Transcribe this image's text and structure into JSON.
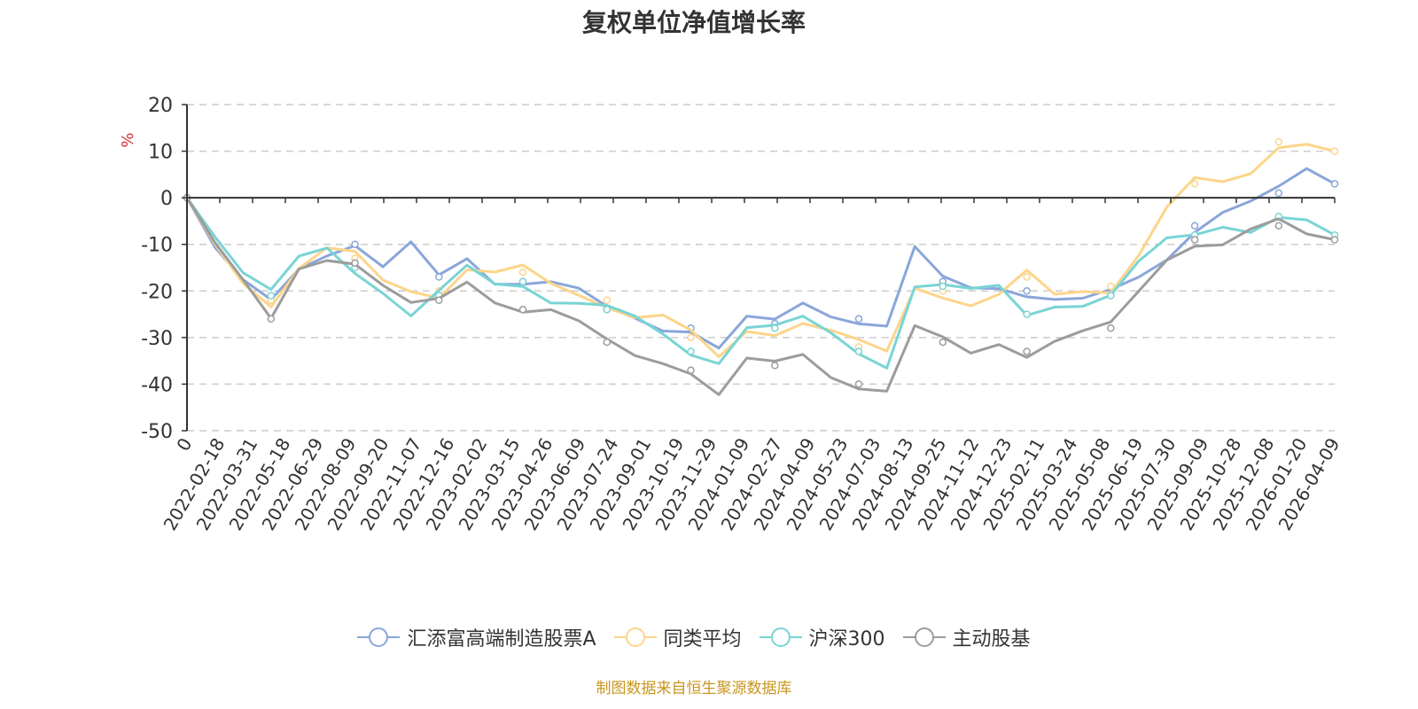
{
  "chart_data": {
    "type": "line",
    "title": "复权单位净值增长率",
    "ylabel": "%",
    "xlabel": "",
    "ylim": [
      -50,
      20
    ],
    "yticks": [
      20,
      10,
      0,
      -10,
      -20,
      -30,
      -40,
      -50
    ],
    "grid": true,
    "legend_position": "bottom-center",
    "x_ticks": [
      "0",
      "2022-02-18",
      "2022-03-31",
      "2022-05-18",
      "2022-06-29",
      "2022-08-09",
      "2022-09-20",
      "2022-11-07",
      "2022-12-16",
      "2023-02-02",
      "2023-03-15",
      "2023-04-26",
      "2023-06-09",
      "2023-07-24",
      "2023-09-01",
      "2023-10-19",
      "2023-11-29",
      "2024-01-09",
      "2024-02-27",
      "2024-04-09",
      "2024-05-23",
      "2024-07-03",
      "2024-08-13",
      "2024-09-25",
      "2024-11-12",
      "2024-12-23",
      "2025-02-11",
      "2025-03-24",
      "2025-05-08",
      "2025-06-19",
      "2025-07-30",
      "2025-09-09",
      "2025-10-28",
      "2025-12-08",
      "2026-01-20",
      "2026-04-09"
    ],
    "series": [
      {
        "name": "汇添富高端制造股票A",
        "color": "#8aa6da",
        "values": [
          0,
          -12,
          -19,
          -22,
          -14,
          -11,
          -10,
          -16,
          -11,
          -17,
          -12,
          -17,
          -18,
          -19,
          -21,
          -24,
          -25,
          -27,
          -28,
          -33,
          -27,
          -27,
          -22,
          -24,
          -26,
          -28,
          -12,
          -18,
          -19,
          -18,
          -20,
          -22,
          -23,
          -21,
          -17,
          -12,
          -6,
          -3,
          -2,
          1,
          6,
          3
        ]
      },
      {
        "name": "同类平均",
        "color": "#fcd58a",
        "values": [
          0,
          -10,
          -17,
          -22,
          -15,
          -12,
          -13,
          -18,
          -19,
          -20,
          -15,
          -17,
          -16,
          -19,
          -20,
          -22,
          -25,
          -26,
          -30,
          -35,
          -28,
          -28,
          -26,
          -29,
          -32,
          -34,
          -19,
          -20,
          -22,
          -21,
          -17,
          -22,
          -20,
          -19,
          -11,
          -2,
          3,
          2,
          5,
          12,
          13,
          10
        ]
      },
      {
        "name": "沪深300",
        "color": "#7ad4d4",
        "values": [
          0,
          -7,
          -16,
          -21,
          -14,
          -11,
          -15,
          -19,
          -25,
          -21,
          -16,
          -19,
          -18,
          -21,
          -22,
          -24,
          -27,
          -30,
          -33,
          -34,
          -27,
          -28,
          -27,
          -30,
          -33,
          -35,
          -18,
          -19,
          -21,
          -20,
          -25,
          -22,
          -22,
          -21,
          -15,
          -10,
          -8,
          -5,
          -6,
          -4,
          -6,
          -8
        ]
      },
      {
        "name": "主动股基",
        "color": "#9c9c9c",
        "values": [
          0,
          -11,
          -19,
          -26,
          -14,
          -12,
          -14,
          -20,
          -24,
          -22,
          -17,
          -21,
          -24,
          -25,
          -28,
          -31,
          -33,
          -34,
          -37,
          -43,
          -36,
          -36,
          -33,
          -37,
          -40,
          -42,
          -29,
          -31,
          -33,
          -30,
          -33,
          -31,
          -30,
          -28,
          -20,
          -12,
          -9,
          -10,
          -8,
          -6,
          -8,
          -9
        ]
      }
    ]
  },
  "source_note": "制图数据来自恒生聚源数据库"
}
